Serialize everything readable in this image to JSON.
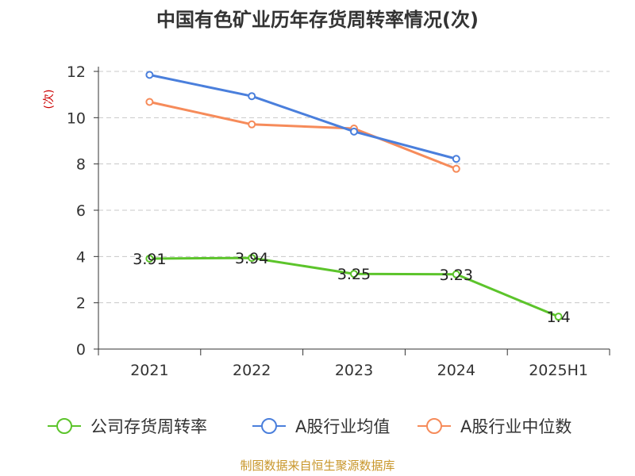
{
  "chart_data": {
    "type": "line",
    "title": "中国有色矿业历年存货周转率情况(次)",
    "ylabel": "(次)",
    "xlabel": "",
    "categories": [
      "2021",
      "2022",
      "2023",
      "2024",
      "2025H1"
    ],
    "ylim": [
      0,
      12
    ],
    "yticks": [
      0,
      2,
      4,
      6,
      8,
      10,
      12
    ],
    "grid": true,
    "legend_position": "bottom",
    "series": [
      {
        "name": "公司存货周转率",
        "color": "#5cc42b",
        "values": [
          3.91,
          3.94,
          3.25,
          3.23,
          1.4
        ],
        "labels": [
          "3.91",
          "3.94",
          "3.25",
          "3.23",
          "1.4"
        ]
      },
      {
        "name": "A股行业均值",
        "color": "#4a7fdc",
        "values": [
          11.85,
          10.93,
          9.4,
          8.22,
          null
        ]
      },
      {
        "name": "A股行业中位数",
        "color": "#f68b5a",
        "values": [
          10.68,
          9.71,
          9.53,
          7.79,
          null
        ]
      }
    ]
  },
  "source": "制图数据来自恒生聚源数据库"
}
